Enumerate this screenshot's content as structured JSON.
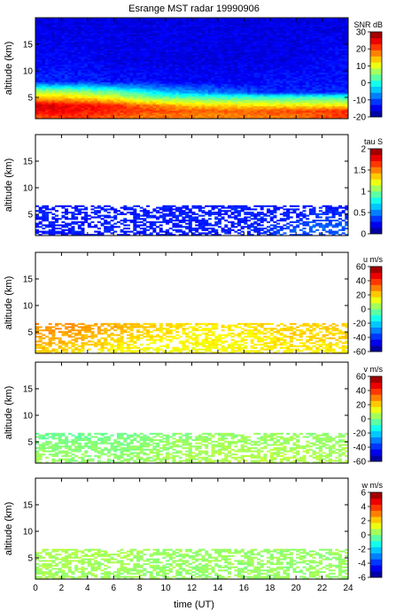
{
  "title": "Esrange MST radar 19990906",
  "xlabel": "time (UT)",
  "x_ticks": [
    "0",
    "2",
    "4",
    "6",
    "8",
    "10",
    "12",
    "14",
    "16",
    "18",
    "20",
    "22",
    "24"
  ],
  "chart_data": [
    {
      "type": "heatmap",
      "ylabel": "altitude (km)",
      "xlim": [
        0,
        24
      ],
      "ylim": [
        1,
        20
      ],
      "y_ticks": [
        "5",
        "10",
        "15"
      ],
      "colorbar": {
        "label": "SNR dB",
        "range": [
          -20,
          30
        ],
        "ticks": [
          "-20",
          "-10",
          "0",
          "10",
          "20",
          "30"
        ]
      },
      "colormap": "jet",
      "data": {
        "x": [
          0,
          2,
          4,
          6,
          8,
          10,
          12,
          14,
          16,
          18,
          20,
          22,
          24
        ],
        "y": [
          1.5,
          2.5,
          3.5,
          5,
          6,
          8,
          12,
          18
        ],
        "z": [
          [
            20,
            22,
            21,
            20,
            18,
            18,
            17,
            17,
            17,
            18,
            18,
            20,
            21
          ],
          [
            24,
            24,
            23,
            22,
            21,
            20,
            19,
            19,
            19,
            20,
            20,
            21,
            22
          ],
          [
            26,
            25,
            24,
            22,
            19,
            16,
            14,
            13,
            13,
            12,
            12,
            12,
            12
          ],
          [
            14,
            14,
            12,
            10,
            6,
            4,
            3,
            2,
            2,
            2,
            2,
            2,
            2
          ],
          [
            8,
            8,
            6,
            4,
            0,
            -4,
            -6,
            -8,
            -10,
            -12,
            -12,
            -12,
            -12
          ],
          [
            -12,
            -12,
            -12,
            -13,
            -13,
            -14,
            -14,
            -14,
            -14,
            -13,
            -13,
            -13,
            -13
          ],
          [
            -14,
            -14,
            -14,
            -15,
            -15,
            -15,
            -15,
            -15,
            -15,
            -15,
            -15,
            -14,
            -14
          ],
          [
            -15,
            -15,
            -15,
            -15,
            -15,
            -15,
            -15,
            -15,
            -15,
            -15,
            -15,
            -15,
            -15
          ]
        ]
      }
    },
    {
      "type": "heatmap",
      "ylabel": "altitude (km)",
      "xlim": [
        0,
        24
      ],
      "ylim": [
        1,
        20
      ],
      "y_ticks": [
        "5",
        "10",
        "15"
      ],
      "colorbar": {
        "label": "tau S",
        "range": [
          0,
          2
        ],
        "ticks": [
          "0",
          "0.5",
          "1",
          "1.5",
          "2"
        ]
      },
      "colormap": "jet",
      "data": {
        "x": [
          0,
          2,
          4,
          6,
          8,
          10,
          12,
          14,
          16,
          18,
          20,
          22,
          24
        ],
        "y": [
          1.5,
          2.5,
          3.5,
          5,
          6
        ],
        "z": [
          [
            0.3,
            0.3,
            0.3,
            0.3,
            0.3,
            0.3,
            0.3,
            0.3,
            0.3,
            0.35,
            0.4,
            0.4,
            0.4
          ],
          [
            0.3,
            0.3,
            0.3,
            0.3,
            0.3,
            0.3,
            0.3,
            0.3,
            0.3,
            0.35,
            0.4,
            0.45,
            0.4
          ],
          [
            0.3,
            0.3,
            0.3,
            0.3,
            0.3,
            0.3,
            0.3,
            0.3,
            0.3,
            0.3,
            0.35,
            0.4,
            0.4
          ],
          [
            0.3,
            0.3,
            0.3,
            0.3,
            0.3,
            0.3,
            0.3,
            0.3,
            0.3,
            0.3,
            0.3,
            0.35,
            0.3
          ],
          [
            0.3,
            0.3,
            0.3,
            0.3,
            0.3,
            0.3,
            0.3,
            0.3,
            0.3,
            0.3,
            0.3,
            0.3,
            0.3
          ]
        ]
      }
    },
    {
      "type": "heatmap",
      "ylabel": "altitude (km)",
      "xlim": [
        0,
        24
      ],
      "ylim": [
        1,
        20
      ],
      "y_ticks": [
        "5",
        "10",
        "15"
      ],
      "colorbar": {
        "label": "u m/s",
        "range": [
          -60,
          60
        ],
        "ticks": [
          "-60",
          "-40",
          "-20",
          "0",
          "20",
          "40",
          "60"
        ]
      },
      "colormap": "jet",
      "data": {
        "x": [
          0,
          2,
          4,
          6,
          8,
          10,
          12,
          14,
          16,
          18,
          20,
          22,
          24
        ],
        "y": [
          1.5,
          2.5,
          3.5,
          5,
          6
        ],
        "z": [
          [
            20,
            20,
            18,
            16,
            15,
            14,
            14,
            15,
            15,
            16,
            16,
            16,
            16
          ],
          [
            22,
            22,
            20,
            18,
            16,
            15,
            14,
            15,
            15,
            17,
            18,
            18,
            18
          ],
          [
            24,
            24,
            22,
            20,
            18,
            16,
            15,
            16,
            16,
            18,
            20,
            20,
            20
          ],
          [
            26,
            26,
            24,
            22,
            20,
            18,
            16,
            16,
            16,
            18,
            20,
            20,
            20
          ],
          [
            28,
            28,
            26,
            24,
            22,
            20,
            18,
            18,
            18,
            20,
            20,
            20,
            20
          ]
        ]
      }
    },
    {
      "type": "heatmap",
      "ylabel": "altitude (km)",
      "xlim": [
        0,
        24
      ],
      "ylim": [
        1,
        20
      ],
      "y_ticks": [
        "5",
        "10",
        "15"
      ],
      "colorbar": {
        "label": "v m/s",
        "range": [
          -60,
          60
        ],
        "ticks": [
          "-60",
          "-40",
          "-20",
          "0",
          "20",
          "40",
          "60"
        ]
      },
      "colormap": "jet",
      "data": {
        "x": [
          0,
          2,
          4,
          6,
          8,
          10,
          12,
          14,
          16,
          18,
          20,
          22,
          24
        ],
        "y": [
          1.5,
          2.5,
          3.5,
          5,
          6
        ],
        "z": [
          [
            4,
            3,
            2,
            2,
            3,
            4,
            5,
            6,
            6,
            6,
            6,
            5,
            5
          ],
          [
            3,
            3,
            2,
            2,
            3,
            4,
            5,
            6,
            6,
            6,
            6,
            5,
            5
          ],
          [
            2,
            2,
            1,
            1,
            2,
            3,
            4,
            5,
            5,
            5,
            5,
            4,
            4
          ],
          [
            0,
            0,
            0,
            0,
            1,
            2,
            3,
            4,
            4,
            4,
            4,
            3,
            3
          ],
          [
            -2,
            -2,
            -2,
            -1,
            0,
            1,
            2,
            3,
            3,
            3,
            3,
            2,
            2
          ]
        ]
      }
    },
    {
      "type": "heatmap",
      "ylabel": "altitude (km)",
      "xlim": [
        0,
        24
      ],
      "ylim": [
        1,
        20
      ],
      "y_ticks": [
        "5",
        "10",
        "15"
      ],
      "colorbar": {
        "label": "w m/s",
        "range": [
          -6,
          6
        ],
        "ticks": [
          "-6",
          "-4",
          "-2",
          "0",
          "2",
          "4",
          "6"
        ]
      },
      "colormap": "jet",
      "data": {
        "x": [
          0,
          2,
          4,
          6,
          8,
          10,
          12,
          14,
          16,
          18,
          20,
          22,
          24
        ],
        "y": [
          1.5,
          2.5,
          3.5,
          5,
          6
        ],
        "z": [
          [
            0.4,
            0.4,
            0.4,
            0.3,
            0.3,
            0.3,
            0.3,
            0.3,
            0.3,
            0.3,
            0.3,
            0.3,
            0.3
          ],
          [
            0.4,
            0.4,
            0.4,
            0.3,
            0.3,
            0.3,
            0.3,
            0.3,
            0.3,
            0.3,
            0.3,
            0.3,
            0.3
          ],
          [
            0.5,
            0.5,
            0.4,
            0.4,
            0.3,
            0.3,
            0.3,
            0.3,
            0.3,
            0.3,
            0.3,
            0.3,
            0.3
          ],
          [
            0.5,
            0.5,
            0.5,
            0.4,
            0.4,
            0.3,
            0.3,
            0.3,
            0.3,
            0.3,
            0.3,
            0.3,
            0.3
          ],
          [
            0.6,
            0.6,
            0.5,
            0.5,
            0.4,
            0.4,
            0.3,
            0.3,
            0.3,
            0.3,
            0.3,
            0.3,
            0.3
          ]
        ]
      }
    }
  ]
}
